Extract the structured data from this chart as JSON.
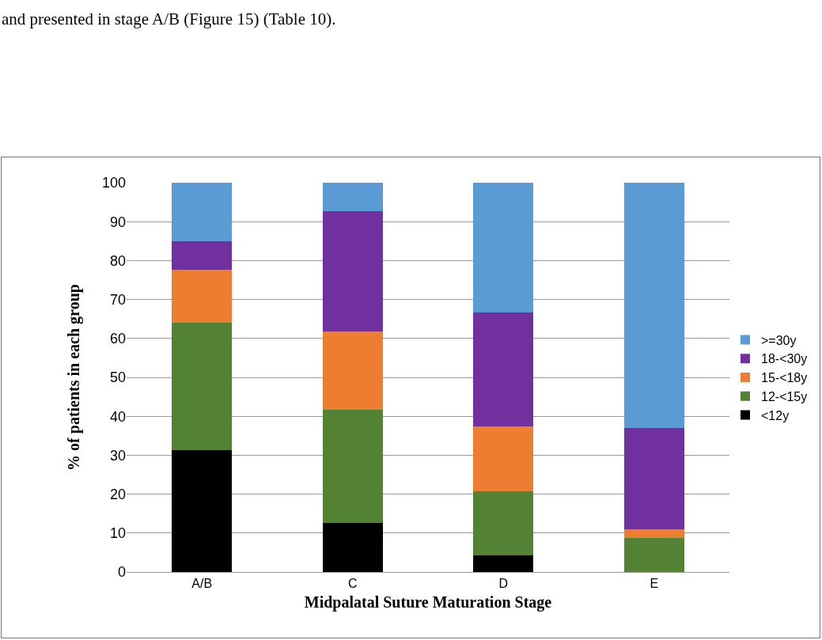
{
  "chart_data": {
    "type": "bar",
    "stacked": true,
    "xlabel": "Midpalatal Suture Maturation Stage",
    "ylabel": "% of patients in each group",
    "annotations": [
      "and presented in stage A/B (Figure 15) (Table 10)."
    ],
    "categories": [
      "A/B",
      "C",
      "D",
      "E"
    ],
    "series": [
      {
        "name": "<12y",
        "color": "#000000",
        "values": [
          31.3,
          12.6,
          4.2,
          0
        ]
      },
      {
        "name": "12-<15y",
        "color": "#548235",
        "values": [
          32.8,
          29.1,
          16.6,
          8.7
        ]
      },
      {
        "name": "15-<18y",
        "color": "#ed7d31",
        "values": [
          13.5,
          20.1,
          16.7,
          2.2
        ]
      },
      {
        "name": "18-<30y",
        "color": "#7030a0",
        "values": [
          7.4,
          30.8,
          29.2,
          26.1
        ]
      },
      {
        "name": ">=30y",
        "color": "#5b9bd5",
        "values": [
          15.0,
          7.4,
          33.3,
          63.0
        ]
      }
    ],
    "ylim": [
      0,
      100
    ],
    "yticks": [
      0,
      10,
      20,
      30,
      40,
      50,
      60,
      70,
      80,
      90,
      100
    ],
    "grid": "y",
    "legend": "right"
  }
}
